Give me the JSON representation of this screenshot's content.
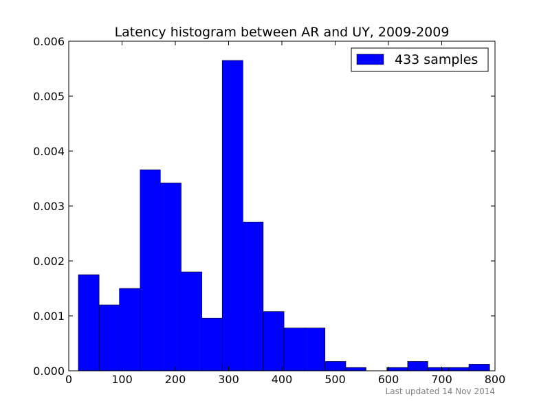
{
  "chart_data": {
    "type": "bar",
    "title": "Latency histogram between AR and UY, 2009-2009",
    "xlabel": "",
    "ylabel": "",
    "xlim": [
      0,
      800
    ],
    "ylim": [
      0,
      0.006
    ],
    "x_ticks": [
      0,
      100,
      200,
      300,
      400,
      500,
      600,
      700,
      800
    ],
    "y_ticks": [
      0.0,
      0.001,
      0.002,
      0.003,
      0.004,
      0.005,
      0.006
    ],
    "y_tick_labels": [
      "0.000",
      "0.001",
      "0.002",
      "0.003",
      "0.004",
      "0.005",
      "0.006"
    ],
    "grid": false,
    "legend_position": "top-right",
    "series": [
      {
        "name": "433 samples",
        "color": "#0000ff",
        "bins": [
          {
            "x0": 18,
            "x1": 57,
            "value": 0.00175
          },
          {
            "x0": 57,
            "x1": 95,
            "value": 0.0012
          },
          {
            "x0": 95,
            "x1": 134,
            "value": 0.0015
          },
          {
            "x0": 134,
            "x1": 172,
            "value": 0.00366
          },
          {
            "x0": 172,
            "x1": 211,
            "value": 0.00342
          },
          {
            "x0": 211,
            "x1": 250,
            "value": 0.0018
          },
          {
            "x0": 250,
            "x1": 288,
            "value": 0.00096
          },
          {
            "x0": 288,
            "x1": 327,
            "value": 0.00565
          },
          {
            "x0": 327,
            "x1": 365,
            "value": 0.00271
          },
          {
            "x0": 365,
            "x1": 404,
            "value": 0.00108
          },
          {
            "x0": 404,
            "x1": 443,
            "value": 0.00078
          },
          {
            "x0": 443,
            "x1": 481,
            "value": 0.00078
          },
          {
            "x0": 481,
            "x1": 520,
            "value": 0.00017
          },
          {
            "x0": 520,
            "x1": 558,
            "value": 6e-05
          },
          {
            "x0": 558,
            "x1": 597,
            "value": 0.0
          },
          {
            "x0": 597,
            "x1": 636,
            "value": 6e-05
          },
          {
            "x0": 636,
            "x1": 674,
            "value": 0.00017
          },
          {
            "x0": 674,
            "x1": 713,
            "value": 6e-05
          },
          {
            "x0": 713,
            "x1": 751,
            "value": 6e-05
          },
          {
            "x0": 751,
            "x1": 790,
            "value": 0.00012
          }
        ]
      }
    ]
  },
  "footer": {
    "updated_text": "Last updated 14 Nov 2014"
  }
}
